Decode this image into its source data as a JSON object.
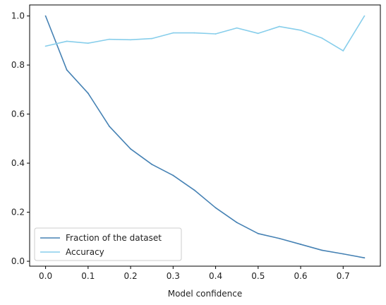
{
  "chart_data": {
    "type": "line",
    "title": "",
    "xlabel": "Model confidence",
    "ylabel": "",
    "xlim": [
      -0.0375,
      0.7875
    ],
    "ylim": [
      -0.02,
      1.045
    ],
    "x": [
      0.0,
      0.05,
      0.1,
      0.15,
      0.2,
      0.25,
      0.3,
      0.35,
      0.4,
      0.45,
      0.5,
      0.55,
      0.6,
      0.65,
      0.7,
      0.75
    ],
    "x_ticks": [
      0.0,
      0.1,
      0.2,
      0.3,
      0.4,
      0.5,
      0.6,
      0.7
    ],
    "x_tick_labels": [
      "0.0",
      "0.1",
      "0.2",
      "0.3",
      "0.4",
      "0.5",
      "0.6",
      "0.7"
    ],
    "y_ticks": [
      0.0,
      0.2,
      0.4,
      0.6,
      0.8,
      1.0
    ],
    "y_tick_labels": [
      "0.0",
      "0.2",
      "0.4",
      "0.6",
      "0.8",
      "1.0"
    ],
    "grid": false,
    "legend_position": "lower-left",
    "series": [
      {
        "name": "Fraction of the dataset",
        "color": "#4682b4",
        "values": [
          1.0,
          0.78,
          0.685,
          0.55,
          0.458,
          0.395,
          0.35,
          0.29,
          0.218,
          0.158,
          0.113,
          0.093,
          0.069,
          0.045,
          0.03,
          0.014
        ]
      },
      {
        "name": "Accuracy",
        "color": "#87ceeb",
        "values": [
          0.877,
          0.897,
          0.889,
          0.905,
          0.903,
          0.908,
          0.931,
          0.931,
          0.927,
          0.951,
          0.929,
          0.957,
          0.942,
          0.91,
          0.858,
          1.0
        ]
      }
    ]
  }
}
